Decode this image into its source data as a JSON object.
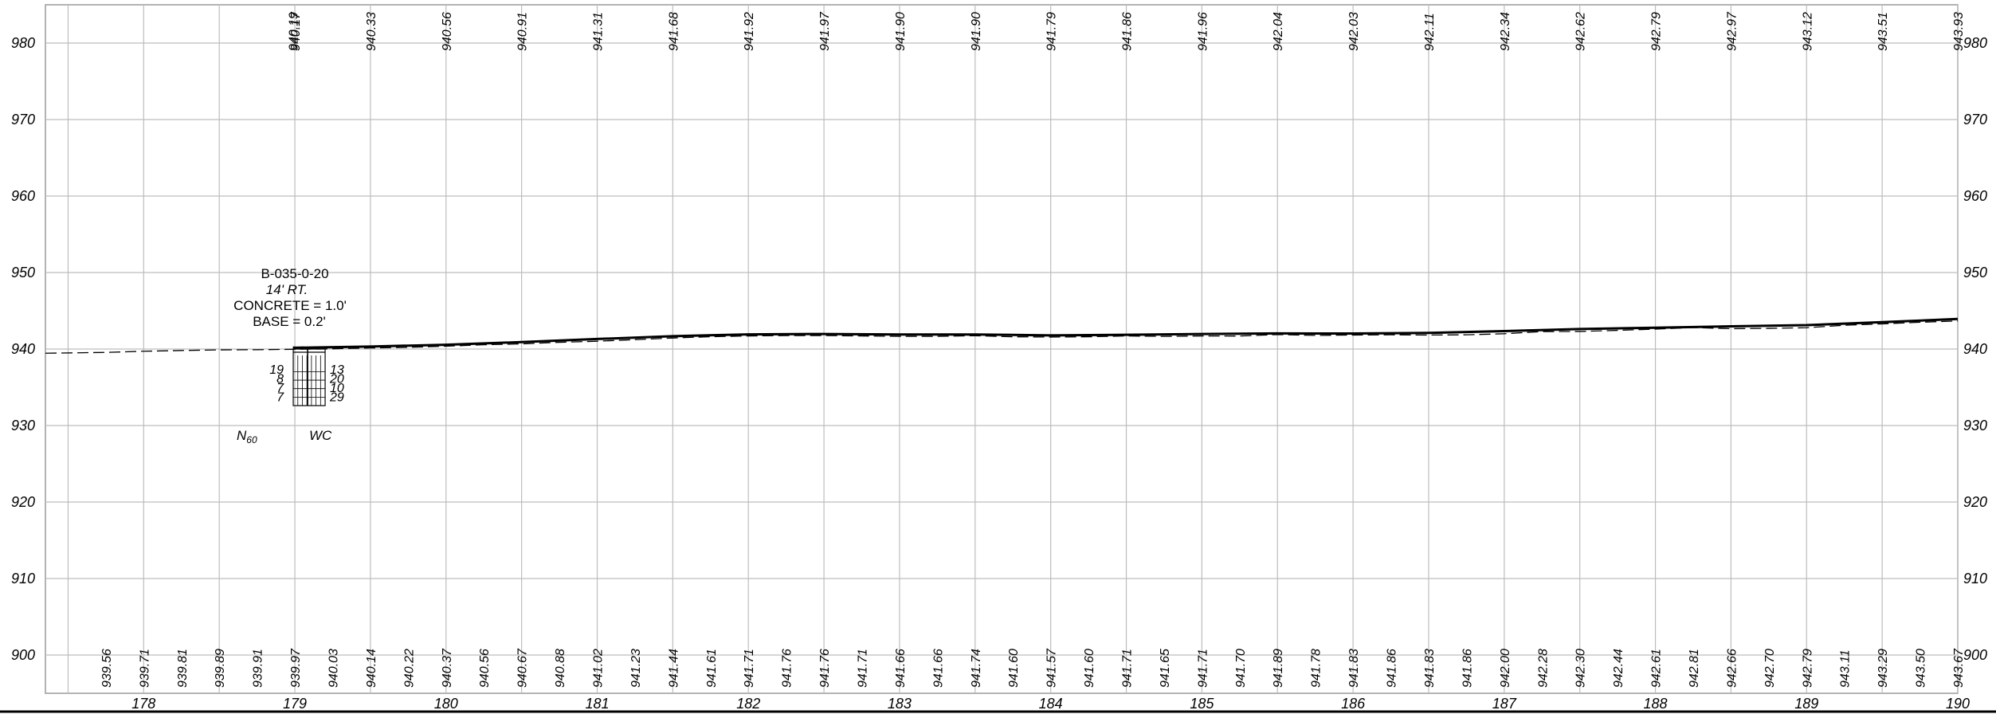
{
  "colors": {
    "grid": "#bdbdbd",
    "ink": "#000000",
    "background": "#ffffff"
  },
  "profile": {
    "elevation_labels": [
      "980",
      "970",
      "960",
      "950",
      "940",
      "930",
      "920",
      "910",
      "900"
    ],
    "station_labels": [
      "178",
      "179",
      "180",
      "181",
      "182",
      "183",
      "184",
      "185",
      "186",
      "187",
      "188",
      "189",
      "190"
    ],
    "top_values": [
      {
        "station": 178.987,
        "value": "940.19"
      },
      {
        "station": 179.0,
        "value": "940.17"
      },
      {
        "station": 179.5,
        "value": "940.33"
      },
      {
        "station": 180.0,
        "value": "940.56"
      },
      {
        "station": 180.5,
        "value": "940.91"
      },
      {
        "station": 181.0,
        "value": "941.31"
      },
      {
        "station": 181.5,
        "value": "941.68"
      },
      {
        "station": 182.0,
        "value": "941.92"
      },
      {
        "station": 182.5,
        "value": "941.97"
      },
      {
        "station": 183.0,
        "value": "941.90"
      },
      {
        "station": 183.5,
        "value": "941.90"
      },
      {
        "station": 184.0,
        "value": "941.79"
      },
      {
        "station": 184.5,
        "value": "941.86"
      },
      {
        "station": 185.0,
        "value": "941.96"
      },
      {
        "station": 185.5,
        "value": "942.04"
      },
      {
        "station": 186.0,
        "value": "942.03"
      },
      {
        "station": 186.5,
        "value": "942.11"
      },
      {
        "station": 187.0,
        "value": "942.34"
      },
      {
        "station": 187.5,
        "value": "942.62"
      },
      {
        "station": 188.0,
        "value": "942.79"
      },
      {
        "station": 188.5,
        "value": "942.97"
      },
      {
        "station": 189.0,
        "value": "943.12"
      },
      {
        "station": 189.5,
        "value": "943.51"
      },
      {
        "station": 190.0,
        "value": "943.93"
      }
    ],
    "bottom_values": [
      {
        "station": 177.75,
        "value": "939.56"
      },
      {
        "station": 178.0,
        "value": "939.71"
      },
      {
        "station": 178.25,
        "value": "939.81"
      },
      {
        "station": 178.5,
        "value": "939.89"
      },
      {
        "station": 178.75,
        "value": "939.91"
      },
      {
        "station": 179.0,
        "value": "939.97"
      },
      {
        "station": 179.25,
        "value": "940.03"
      },
      {
        "station": 179.5,
        "value": "940.14"
      },
      {
        "station": 179.75,
        "value": "940.22"
      },
      {
        "station": 180.0,
        "value": "940.37"
      },
      {
        "station": 180.25,
        "value": "940.56"
      },
      {
        "station": 180.5,
        "value": "940.67"
      },
      {
        "station": 180.75,
        "value": "940.88"
      },
      {
        "station": 181.0,
        "value": "941.02"
      },
      {
        "station": 181.25,
        "value": "941.23"
      },
      {
        "station": 181.5,
        "value": "941.44"
      },
      {
        "station": 181.75,
        "value": "941.61"
      },
      {
        "station": 182.0,
        "value": "941.71"
      },
      {
        "station": 182.25,
        "value": "941.76"
      },
      {
        "station": 182.5,
        "value": "941.76"
      },
      {
        "station": 182.75,
        "value": "941.71"
      },
      {
        "station": 183.0,
        "value": "941.66"
      },
      {
        "station": 183.25,
        "value": "941.66"
      },
      {
        "station": 183.5,
        "value": "941.74"
      },
      {
        "station": 183.75,
        "value": "941.60"
      },
      {
        "station": 184.0,
        "value": "941.57"
      },
      {
        "station": 184.25,
        "value": "941.60"
      },
      {
        "station": 184.5,
        "value": "941.71"
      },
      {
        "station": 184.75,
        "value": "941.65"
      },
      {
        "station": 185.0,
        "value": "941.71"
      },
      {
        "station": 185.25,
        "value": "941.70"
      },
      {
        "station": 185.5,
        "value": "941.89"
      },
      {
        "station": 185.75,
        "value": "941.78"
      },
      {
        "station": 186.0,
        "value": "941.83"
      },
      {
        "station": 186.25,
        "value": "941.86"
      },
      {
        "station": 186.5,
        "value": "941.83"
      },
      {
        "station": 186.75,
        "value": "941.86"
      },
      {
        "station": 187.0,
        "value": "942.00"
      },
      {
        "station": 187.25,
        "value": "942.28"
      },
      {
        "station": 187.5,
        "value": "942.30"
      },
      {
        "station": 187.75,
        "value": "942.44"
      },
      {
        "station": 188.0,
        "value": "942.61"
      },
      {
        "station": 188.25,
        "value": "942.81"
      },
      {
        "station": 188.5,
        "value": "942.66"
      },
      {
        "station": 188.75,
        "value": "942.70"
      },
      {
        "station": 189.0,
        "value": "942.79"
      },
      {
        "station": 189.25,
        "value": "943.11"
      },
      {
        "station": 189.5,
        "value": "943.29"
      },
      {
        "station": 189.75,
        "value": "943.50"
      },
      {
        "station": 190.0,
        "value": "943.67"
      }
    ],
    "boring": {
      "station": 179.0,
      "top_elevation": 940.0,
      "id": "B-035-0-20",
      "offset": "14' RT.",
      "concrete": "CONCRETE = 1.0'",
      "base": "BASE = 0.2'",
      "n60_values": [
        "19",
        "8",
        "7",
        "7"
      ],
      "wc_values": [
        "13",
        "20",
        "10",
        "29"
      ],
      "n60_label": "N",
      "n60_subscript": "60",
      "wc_label": "WC"
    }
  }
}
